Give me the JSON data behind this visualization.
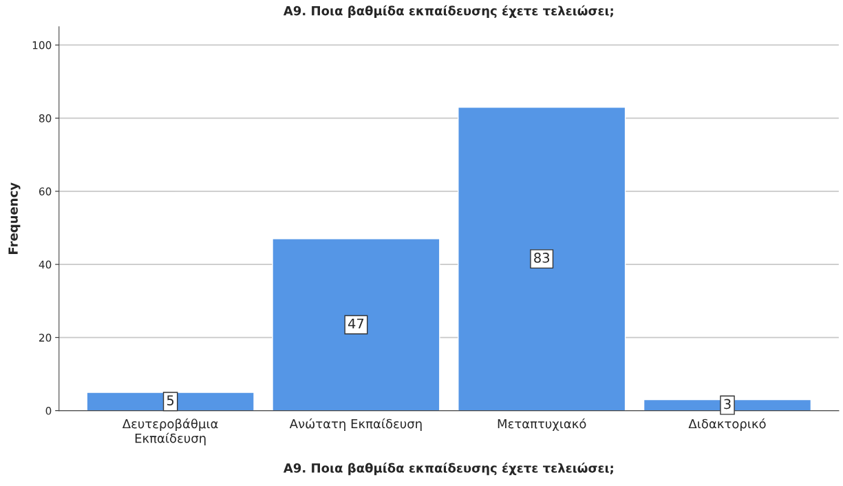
{
  "chart_data": {
    "type": "bar",
    "title": "A9. Ποια βαθμίδα εκπαίδευσης έχετε τελειώσει;",
    "xlabel": "A9. Ποια βαθμίδα εκπαίδευσης έχετε τελειώσει;",
    "ylabel": "Frequency",
    "categories": [
      "Δευτεροβάθμια\nΕκπαίδευση",
      "Ανώτατη Εκπαίδευση",
      "Μεταπτυχιακό",
      "Διδακτορικό"
    ],
    "values": [
      5,
      47,
      83,
      3
    ],
    "color": "#5596e6",
    "ylim": [
      0,
      105
    ],
    "yticks": [
      0,
      20,
      40,
      60,
      80,
      100
    ],
    "grid": "y",
    "data_labels": true
  }
}
